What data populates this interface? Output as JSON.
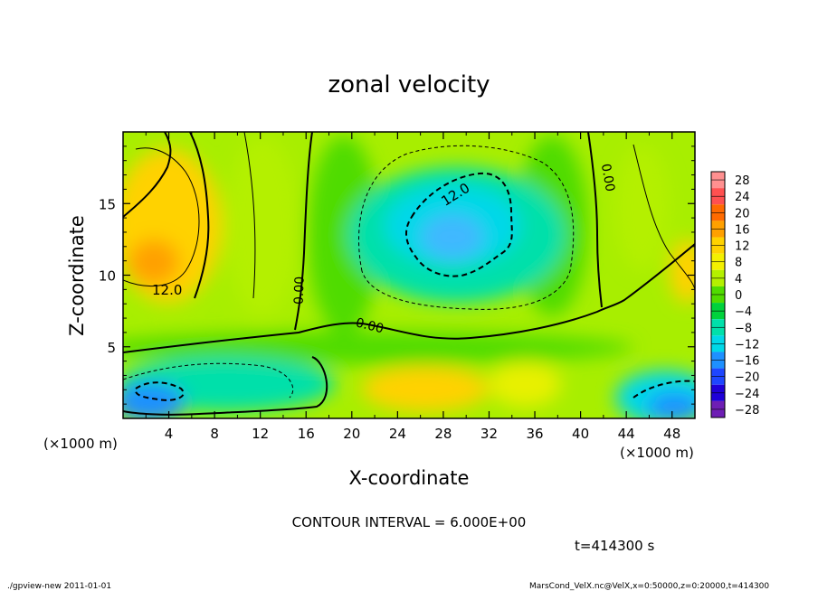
{
  "chart_data": {
    "type": "heatmap",
    "title": "zonal velocity",
    "xlabel": "X-coordinate",
    "ylabel": "Z-coordinate",
    "x_unit": "(×1000 m)",
    "y_unit": "(×1000 m)",
    "xlim": [
      0,
      50
    ],
    "ylim": [
      0,
      20
    ],
    "x_ticks": [
      "4",
      "8",
      "12",
      "16",
      "20",
      "24",
      "28",
      "32",
      "36",
      "40",
      "44",
      "48"
    ],
    "y_ticks": [
      "5",
      "10",
      "15"
    ],
    "contour_interval": "CONTOUR INTERVAL = 6.000E+00",
    "time_label": "t=414300 s",
    "contour_labels": [
      "12.0",
      "12.0",
      "0.00",
      "0.00",
      "0.00"
    ],
    "colorbar": {
      "labels": [
        "28",
        "24",
        "20",
        "16",
        "12",
        "8",
        "4",
        "0",
        "−4",
        "−8",
        "−12",
        "−16",
        "−20",
        "−24",
        "−28"
      ],
      "colors": [
        "#ff9090",
        "#ff5050",
        "#ff6a00",
        "#ffa000",
        "#ffd200",
        "#f4f000",
        "#b4f000",
        "#50dc00",
        "#00d23c",
        "#00e0aa",
        "#00d8e8",
        "#1e90ff",
        "#1e46ff",
        "#1e00d8",
        "#6e1eb4"
      ]
    },
    "field_centers": [
      {
        "x": 3,
        "z": 11,
        "value": 16
      },
      {
        "x": 30,
        "z": 12,
        "value": -12
      },
      {
        "x": 2,
        "z": 1,
        "value": -16
      },
      {
        "x": 48,
        "z": 1.5,
        "value": -16
      },
      {
        "x": 28,
        "z": 2,
        "value": 10
      },
      {
        "x": 49,
        "z": 10,
        "value": 12
      }
    ]
  },
  "footer": {
    "left": "./gpview-new   2011-01-01",
    "right": "MarsCond_VelX.nc@VelX,x=0:50000,z=0:20000,t=414300"
  }
}
